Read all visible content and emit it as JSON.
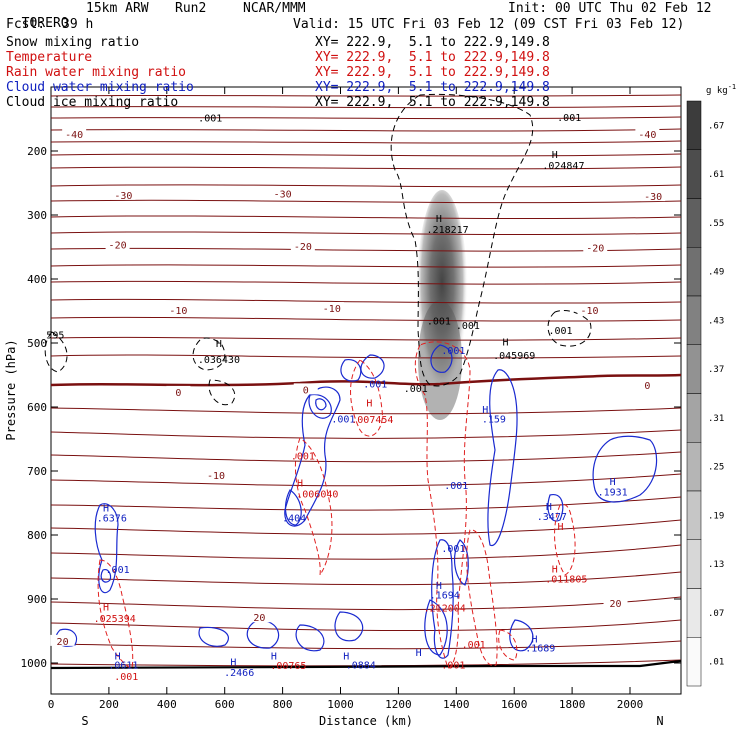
{
  "header": {
    "model": "TORERO",
    "resolution": "15km ARW",
    "run": "Run2",
    "org": "NCAR/MMM",
    "init": "Init: 00 UTC Thu 02 Feb 12",
    "fcst_label": "Fcst:",
    "fcst_value": "39 h",
    "valid": "Valid: 15 UTC Fri 03 Feb 12 (09 CST Fri 03 Feb 12)"
  },
  "fields": [
    {
      "label": "Snow mixing ratio",
      "xy": "XY= 222.9,  5.1 to 222.9,149.8",
      "color": "#000000"
    },
    {
      "label": "Temperature",
      "xy": "XY= 222.9,  5.1 to 222.9,149.8",
      "color": "#d01010"
    },
    {
      "label": "Rain water mixing ratio",
      "xy": "XY= 222.9,  5.1 to 222.9,149.8",
      "color": "#d01010"
    },
    {
      "label": "Cloud water mixing ratio",
      "xy": "XY= 222.9,  5.1 to 222.9,149.8",
      "color": "#1020c0"
    },
    {
      "label": "Cloud ice mixing ratio",
      "xy": "XY= 222.9,  5.1 to 222.9,149.8",
      "color": "#000000"
    }
  ],
  "chart_data": {
    "type": "cross-section contour",
    "xlabel": "Distance (km)",
    "ylabel": "Pressure (hPa)",
    "xlim": [
      0,
      2170
    ],
    "ylim": [
      1050,
      100
    ],
    "x_ticks": [
      0,
      200,
      400,
      600,
      800,
      1000,
      1200,
      1400,
      1600,
      1800,
      2000
    ],
    "y_ticks": [
      200,
      300,
      400,
      500,
      600,
      700,
      800,
      900,
      1000
    ],
    "direction_left": "S",
    "direction_right": "N",
    "colorbar": {
      "unit": "g kg",
      "unit_exp": "-1",
      "labels": [
        ".67",
        ".61",
        ".55",
        ".49",
        ".43",
        ".37",
        ".31",
        ".25",
        ".19",
        ".13",
        ".07",
        ".01"
      ]
    },
    "temperature_contours_c": [
      -40,
      -30,
      -20,
      -10,
      0,
      10,
      20
    ],
    "temperature_labels": [
      {
        "text": "-40",
        "x": 80,
        "p": 175
      },
      {
        "text": "-40",
        "x": 2060,
        "p": 175
      },
      {
        "text": "-30",
        "x": 250,
        "p": 270
      },
      {
        "text": "-30",
        "x": 800,
        "p": 268
      },
      {
        "text": "-30",
        "x": 2080,
        "p": 272
      },
      {
        "text": "-20",
        "x": 230,
        "p": 348
      },
      {
        "text": "-20",
        "x": 870,
        "p": 350
      },
      {
        "text": "-20",
        "x": 1880,
        "p": 352
      },
      {
        "text": "-10",
        "x": 440,
        "p": 450
      },
      {
        "text": "-10",
        "x": 970,
        "p": 447
      },
      {
        "text": "-10",
        "x": 1860,
        "p": 450
      },
      {
        "text": "0",
        "x": 440,
        "p": 578
      },
      {
        "text": "0",
        "x": 880,
        "p": 574
      },
      {
        "text": "0",
        "x": 2060,
        "p": 567
      },
      {
        "text": "-10",
        "x": 570,
        "p": 708
      },
      {
        "text": "20",
        "x": 720,
        "p": 930
      },
      {
        "text": "20",
        "x": 40,
        "p": 967
      },
      {
        "text": "20",
        "x": 1950,
        "p": 908
      }
    ],
    "annotations": [
      {
        "text": "H",
        "x": 580,
        "p": 500,
        "color": "#000000"
      },
      {
        "text": ".036430",
        "x": 580,
        "p": 525,
        "color": "#000000"
      },
      {
        "text": "H",
        "x": 1340,
        "p": 305,
        "color": "#000000"
      },
      {
        "text": ".218217",
        "x": 1370,
        "p": 322,
        "color": "#000000"
      },
      {
        "text": "H",
        "x": 1740,
        "p": 205,
        "color": "#000000"
      },
      {
        "text": ".024847",
        "x": 1770,
        "p": 222,
        "color": "#000000"
      },
      {
        "text": ".001",
        "x": 1340,
        "p": 465,
        "color": "#000000"
      },
      {
        "text": ".001",
        "x": 1440,
        "p": 472,
        "color": "#000000"
      },
      {
        "text": ".001",
        "x": 1760,
        "p": 480,
        "color": "#000000"
      },
      {
        "text": "H",
        "x": 1570,
        "p": 498,
        "color": "#000000"
      },
      {
        "text": ".045969",
        "x": 1600,
        "p": 519,
        "color": "#000000"
      },
      {
        "text": ".001",
        "x": 1260,
        "p": 570,
        "color": "#000000"
      },
      {
        "text": "595",
        "x": 15,
        "p": 487,
        "color": "#000000"
      },
      {
        "text": ".001",
        "x": 550,
        "p": 148,
        "color": "#000000"
      },
      {
        "text": ".001",
        "x": 1790,
        "p": 147,
        "color": "#000000"
      },
      {
        "text": ".001",
        "x": 1390,
        "p": 511,
        "color": "#1020c0"
      },
      {
        "text": ".001",
        "x": 1120,
        "p": 563,
        "color": "#1020c0"
      },
      {
        "text": ".001",
        "x": 1010,
        "p": 618,
        "color": "#1020c0"
      },
      {
        "text": ".007454",
        "x": 1110,
        "p": 619,
        "color": "#d01010"
      },
      {
        "text": "H",
        "x": 1100,
        "p": 593,
        "color": "#d01010"
      },
      {
        "text": "H",
        "x": 1500,
        "p": 603,
        "color": "#1020c0"
      },
      {
        "text": ".159",
        "x": 1530,
        "p": 618,
        "color": "#1020c0"
      },
      {
        "text": ".001",
        "x": 870,
        "p": 676,
        "color": "#d01010"
      },
      {
        "text": "H",
        "x": 860,
        "p": 718,
        "color": "#d01010"
      },
      {
        "text": ".006040",
        "x": 920,
        "p": 735,
        "color": "#d01010"
      },
      {
        "text": ".001",
        "x": 1400,
        "p": 722,
        "color": "#1020c0"
      },
      {
        "text": "H",
        "x": 1940,
        "p": 716,
        "color": "#1020c0"
      },
      {
        "text": ".1931",
        "x": 1940,
        "p": 732,
        "color": "#1020c0"
      },
      {
        "text": "H",
        "x": 190,
        "p": 757,
        "color": "#1020c0"
      },
      {
        "text": ".6376",
        "x": 210,
        "p": 773,
        "color": "#1020c0"
      },
      {
        "text": ".404",
        "x": 840,
        "p": 773,
        "color": "#1020c0"
      },
      {
        "text": "H",
        "x": 1720,
        "p": 755,
        "color": "#1020c0"
      },
      {
        "text": ".3477",
        "x": 1730,
        "p": 770,
        "color": "#1020c0"
      },
      {
        "text": "H",
        "x": 1760,
        "p": 786,
        "color": "#d01010"
      },
      {
        "text": ".001",
        "x": 1390,
        "p": 820,
        "color": "#1020c0"
      },
      {
        "text": ".001",
        "x": 230,
        "p": 853,
        "color": "#1020c0"
      },
      {
        "text": "H",
        "x": 1740,
        "p": 852,
        "color": "#d01010"
      },
      {
        "text": ".011805",
        "x": 1780,
        "p": 868,
        "color": "#d01010"
      },
      {
        "text": "H",
        "x": 1340,
        "p": 878,
        "color": "#1020c0"
      },
      {
        "text": ".1694",
        "x": 1360,
        "p": 893,
        "color": "#1020c0"
      },
      {
        "text": ".212004",
        "x": 1360,
        "p": 913,
        "color": "#d01010"
      },
      {
        "text": "H",
        "x": 190,
        "p": 912,
        "color": "#d01010"
      },
      {
        "text": ".025394",
        "x": 220,
        "p": 930,
        "color": "#d01010"
      },
      {
        "text": "H",
        "x": 1670,
        "p": 962,
        "color": "#1020c0"
      },
      {
        "text": ".1689",
        "x": 1690,
        "p": 976,
        "color": "#1020c0"
      },
      {
        "text": ".001",
        "x": 1460,
        "p": 970,
        "color": "#d01010"
      },
      {
        "text": "H",
        "x": 230,
        "p": 988,
        "color": "#1020c0"
      },
      {
        "text": ".0611",
        "x": 250,
        "p": 1002,
        "color": "#1020c0"
      },
      {
        "text": "H",
        "x": 770,
        "p": 988,
        "color": "#1020c0"
      },
      {
        "text": ".00765",
        "x": 820,
        "p": 1003,
        "color": "#d01010"
      },
      {
        "text": "H",
        "x": 1020,
        "p": 988,
        "color": "#1020c0"
      },
      {
        "text": ".0884",
        "x": 1070,
        "p": 1002,
        "color": "#1020c0"
      },
      {
        "text": "H",
        "x": 1270,
        "p": 983,
        "color": "#1020c0"
      },
      {
        "text": "H",
        "x": 630,
        "p": 998,
        "color": "#1020c0"
      },
      {
        "text": ".2466",
        "x": 650,
        "p": 1014,
        "color": "#1020c0"
      },
      {
        "text": ".001",
        "x": 260,
        "p": 1020,
        "color": "#d01010"
      },
      {
        "text": ".001",
        "x": 1390,
        "p": 1002,
        "color": "#d01010"
      }
    ]
  }
}
